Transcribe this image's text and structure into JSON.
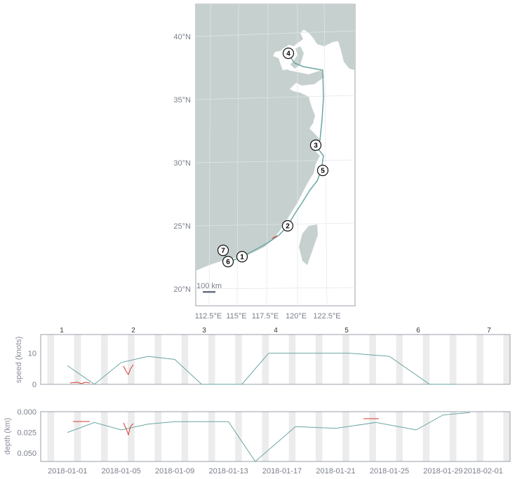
{
  "colors": {
    "land": "#c6d0cf",
    "track": "#6aa6a3",
    "alert": "#d63b2f",
    "band": "#ececec",
    "frame": "#9aa0a8",
    "tick": "#7a7f8c"
  },
  "map": {
    "lat_labels": [
      "40°N",
      "35°N",
      "30°N",
      "25°N",
      "20°N"
    ],
    "lon_labels": [
      "112.5°E",
      "115°E",
      "117.5°E",
      "120°E",
      "122.5°E"
    ],
    "scalebar_label": "100 km",
    "markers": [
      "1",
      "2",
      "3",
      "4",
      "5",
      "6",
      "7"
    ]
  },
  "chart_data": [
    {
      "type": "line",
      "name": "speed",
      "ylabel": "speed (knots)",
      "ylim": [
        0,
        16
      ],
      "yticks": [
        "0",
        "10"
      ],
      "segment_labels": [
        "1",
        "2",
        "3",
        "4",
        "5",
        "6",
        "7"
      ],
      "x": [
        "2018-01-01",
        "2018-01-03",
        "2018-01-05",
        "2018-01-07",
        "2018-01-09",
        "2018-01-11",
        "2018-01-14",
        "2018-01-16",
        "2018-01-19",
        "2018-01-22",
        "2018-01-25",
        "2018-01-28",
        "2018-01-30"
      ],
      "values": [
        6,
        0,
        7,
        9,
        8,
        0,
        0,
        10,
        10,
        10,
        9,
        0,
        0
      ]
    },
    {
      "type": "line",
      "name": "depth",
      "ylabel": "depth (km)",
      "ylim": [
        0.06,
        0.0
      ],
      "yticks": [
        "0.000",
        "0.025",
        "0.050"
      ],
      "xticks": [
        "2018-01-01",
        "2018-01-05",
        "2018-01-09",
        "2018-01-13",
        "2018-01-17",
        "2018-01-21",
        "2018-01-25",
        "2018-01-29",
        "2018-02-01"
      ],
      "x": [
        "2018-01-01",
        "2018-01-03",
        "2018-01-05",
        "2018-01-07",
        "2018-01-09",
        "2018-01-13",
        "2018-01-15",
        "2018-01-18",
        "2018-01-21",
        "2018-01-24",
        "2018-01-27",
        "2018-01-29",
        "2018-01-31"
      ],
      "values": [
        0.025,
        0.013,
        0.022,
        0.015,
        0.012,
        0.012,
        0.06,
        0.018,
        0.02,
        0.013,
        0.022,
        0.004,
        0.001
      ]
    }
  ]
}
